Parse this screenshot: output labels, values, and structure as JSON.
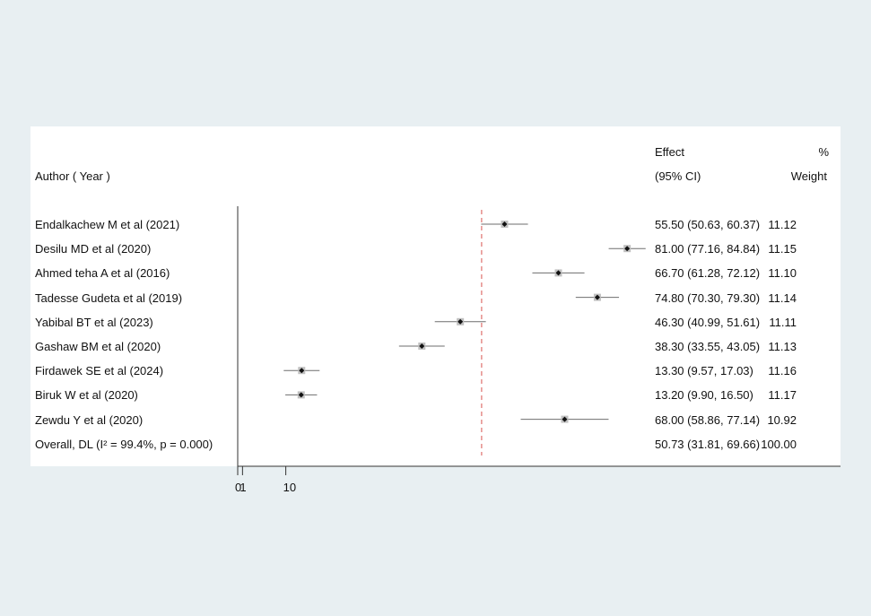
{
  "header": {
    "author_label": "Author ( Year )",
    "effect_label": "Effect",
    "ci_label": "(95% CI)",
    "pct_label": "%",
    "weight_label": "Weight"
  },
  "studies": [
    {
      "author": "Endalkachew M et al (2021)",
      "effect": 55.5,
      "lo": 50.63,
      "hi": 60.37,
      "effect_text": "55.50 (50.63, 60.37)",
      "weight": "11.12"
    },
    {
      "author": "Desilu MD et al (2020)",
      "effect": 81.0,
      "lo": 77.16,
      "hi": 84.84,
      "effect_text": "81.00 (77.16, 84.84)",
      "weight": "11.15"
    },
    {
      "author": "Ahmed teha A et al (2016)",
      "effect": 66.7,
      "lo": 61.28,
      "hi": 72.12,
      "effect_text": "66.70 (61.28, 72.12)",
      "weight": "11.10"
    },
    {
      "author": "Tadesse Gudeta et al (2019)",
      "effect": 74.8,
      "lo": 70.3,
      "hi": 79.3,
      "effect_text": "74.80 (70.30, 79.30)",
      "weight": "11.14"
    },
    {
      "author": "Yabibal BT et al (2023)",
      "effect": 46.3,
      "lo": 40.99,
      "hi": 51.61,
      "effect_text": "46.30 (40.99, 51.61)",
      "weight": "11.11"
    },
    {
      "author": "Gashaw BM et al  (2020)",
      "effect": 38.3,
      "lo": 33.55,
      "hi": 43.05,
      "effect_text": "38.30 (33.55, 43.05)",
      "weight": "11.13"
    },
    {
      "author": "Firdawek SE et al (2024)",
      "effect": 13.3,
      "lo": 9.57,
      "hi": 17.03,
      "effect_text": "13.30 (9.57, 17.03)",
      "weight": "11.16"
    },
    {
      "author": "Biruk W et al (2020)",
      "effect": 13.2,
      "lo": 9.9,
      "hi": 16.5,
      "effect_text": "13.20 (9.90, 16.50)",
      "weight": "11.17"
    },
    {
      "author": "Zewdu Y et al  (2020)",
      "effect": 68.0,
      "lo": 58.86,
      "hi": 77.14,
      "effect_text": "68.00 (58.86, 77.14)",
      "weight": "10.92"
    }
  ],
  "overall": {
    "label": "Overall, DL (I² = 99.4%, p = 0.000)",
    "effect": 50.73,
    "lo": 31.81,
    "hi": 69.66,
    "effect_text": "50.73 (31.81, 69.66)",
    "weight": "100.00"
  },
  "chart_data": {
    "type": "forest",
    "x_ticks": [
      {
        "value": 0,
        "label": "0"
      },
      {
        "value": 1,
        "label": "1"
      },
      {
        "value": 10,
        "label": "10"
      }
    ],
    "null_line": 1,
    "overall_effect": 50.73,
    "colors": {
      "panel": "#ffffff",
      "background": "#e8eff2",
      "ci_line": "#6e6e6e",
      "box": "#c0c0c0",
      "point": "#111111",
      "overall_line": "#d9534f",
      "axis": "#333333"
    }
  }
}
